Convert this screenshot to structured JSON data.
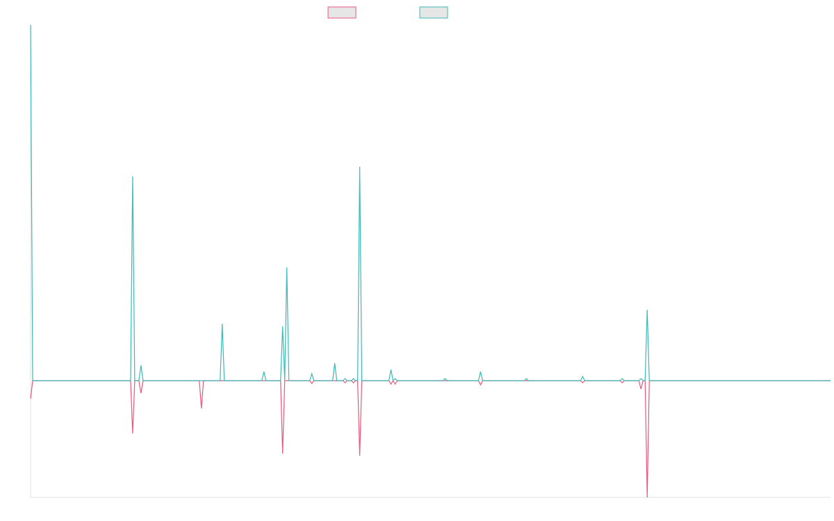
{
  "chart_data": {
    "type": "line",
    "x": [
      0,
      1,
      48,
      49,
      50,
      52,
      53,
      54,
      81,
      82,
      83,
      91,
      92,
      93,
      111,
      112,
      113,
      120,
      121,
      122,
      123,
      124,
      134,
      135,
      136,
      145,
      146,
      147,
      150,
      151,
      152,
      154,
      155,
      156,
      157,
      158,
      159,
      172,
      173,
      174,
      175,
      176,
      198,
      199,
      200,
      215,
      216,
      217,
      237,
      238,
      239,
      264,
      265,
      266,
      283,
      284,
      285,
      292,
      293,
      294,
      295,
      296,
      297,
      384
    ],
    "xlim": [
      0,
      384
    ],
    "ylim": [
      -168,
      512
    ],
    "series": [
      {
        "color": "#e8577a",
        "values": [
          -26,
          0,
          0,
          -76,
          0,
          0,
          -18,
          0,
          0,
          -40,
          0,
          0,
          0,
          0,
          0,
          0,
          0,
          0,
          -105,
          0,
          0,
          0,
          0,
          -4,
          0,
          0,
          0,
          0,
          0,
          -3,
          0,
          0,
          -3,
          0,
          0,
          -108,
          0,
          0,
          -5,
          0,
          -5,
          0,
          0,
          0,
          0,
          0,
          -6,
          0,
          0,
          0,
          0,
          0,
          -3,
          0,
          0,
          -3,
          0,
          0,
          -12,
          0,
          0,
          -168,
          0,
          0
        ]
      },
      {
        "color": "#3cb8b6",
        "values": [
          512,
          0,
          0,
          294,
          0,
          0,
          22,
          0,
          0,
          0,
          0,
          0,
          82,
          0,
          0,
          13,
          0,
          0,
          78,
          0,
          163,
          0,
          0,
          10,
          0,
          0,
          25,
          0,
          0,
          3,
          0,
          0,
          3,
          0,
          0,
          308,
          0,
          0,
          16,
          0,
          3,
          0,
          0,
          3,
          0,
          0,
          13,
          0,
          0,
          3,
          0,
          0,
          6,
          0,
          0,
          3,
          0,
          0,
          3,
          0,
          0,
          102,
          0,
          0
        ]
      }
    ]
  }
}
